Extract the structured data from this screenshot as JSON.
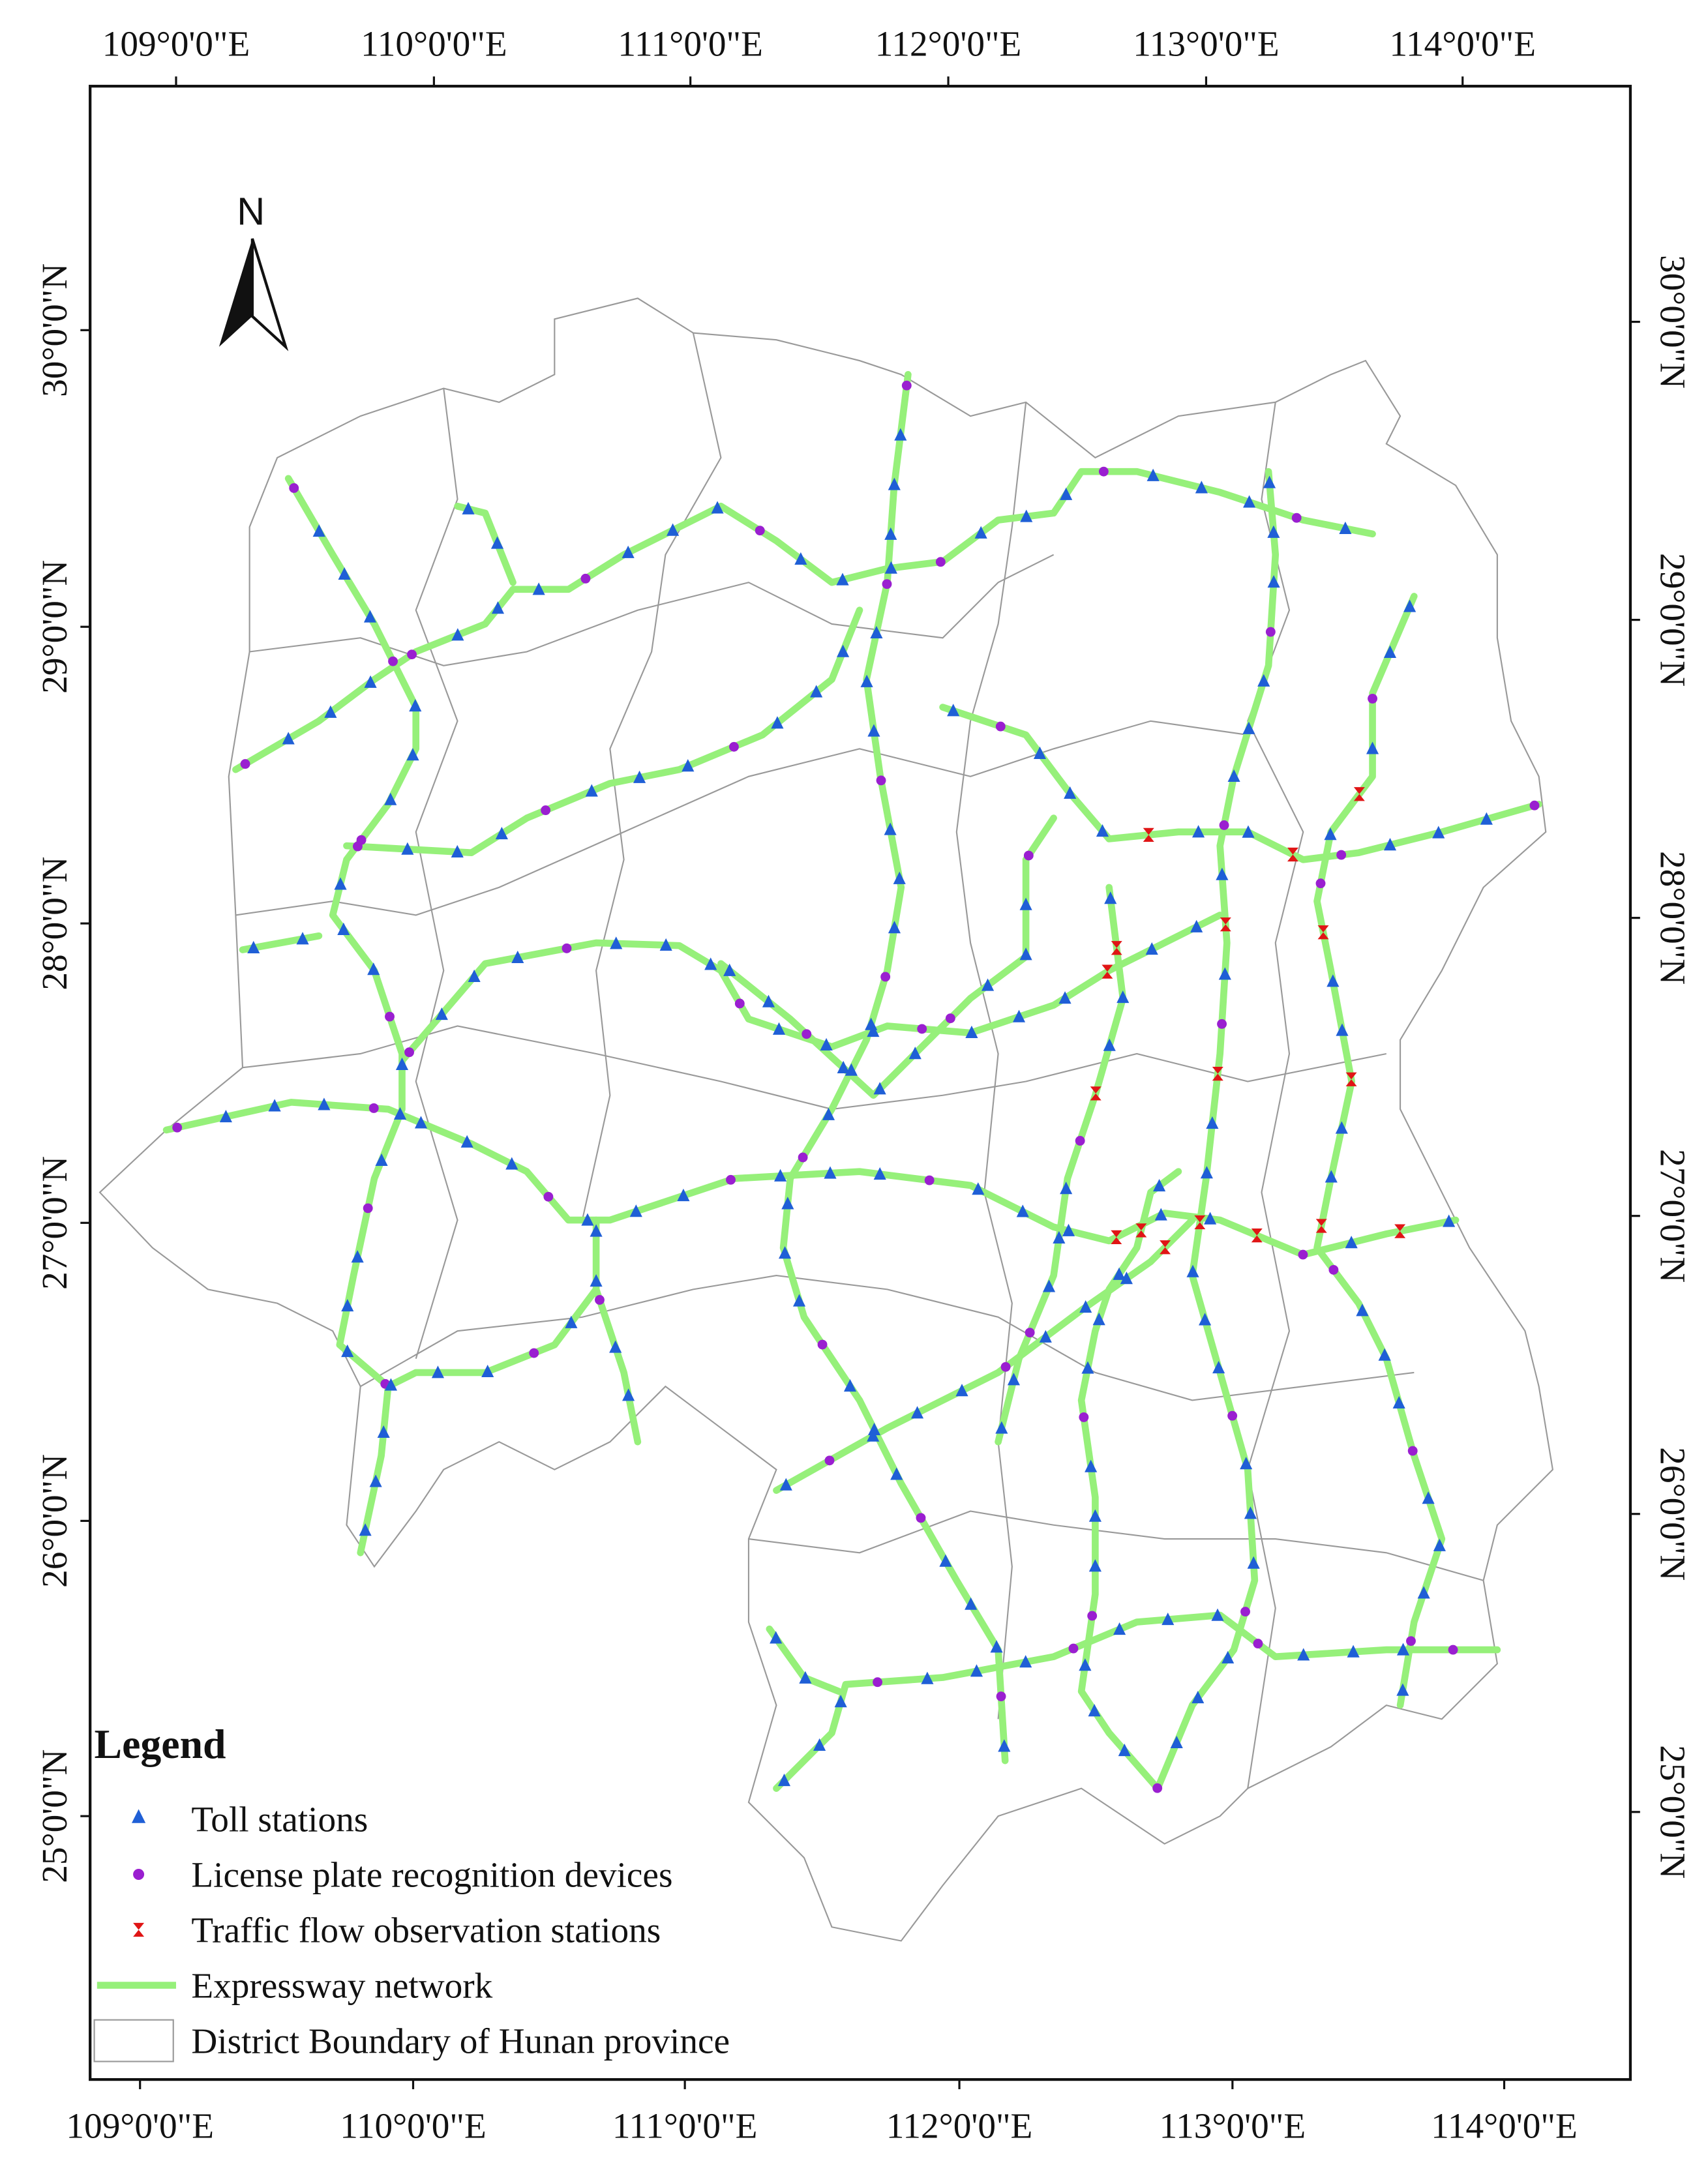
{
  "map": {
    "north_arrow": "N",
    "longitude_labels_top": [
      "109°0'0\"E",
      "110°0'0\"E",
      "111°0'0\"E",
      "112°0'0\"E",
      "113°0'0\"E",
      "114°0'0\"E"
    ],
    "longitude_labels_bottom": [
      "109°0'0\"E",
      "110°0'0\"E",
      "111°0'0\"E",
      "112°0'0\"E",
      "113°0'0\"E",
      "114°0'0\"E"
    ],
    "latitude_labels_left": [
      "30°0'0\"N",
      "29°0'0\"N",
      "28°0'0\"N",
      "27°0'0\"N",
      "26°0'0\"N",
      "25°0'0\"N"
    ],
    "latitude_labels_right": [
      "30°0'0\"N",
      "29°0'0\"N",
      "28°0'0\"N",
      "27°0'0\"N",
      "26°0'0\"N",
      "25°0'0\"N"
    ],
    "legend": {
      "title": "Legend",
      "items": [
        "Toll stations",
        "License plate recognition devices",
        "Traffic flow observation stations",
        "Expressway network",
        "District Boundary of Hunan province"
      ]
    }
  }
}
